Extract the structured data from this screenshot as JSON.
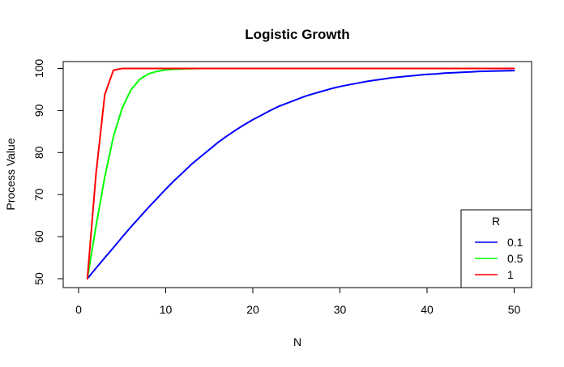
{
  "chart_data": {
    "type": "line",
    "title": "Logistic Growth",
    "xlabel": "N",
    "ylabel": "Process Value",
    "xlim": [
      0,
      50
    ],
    "ylim": [
      48,
      101
    ],
    "xticks": [
      0,
      10,
      20,
      30,
      40,
      50
    ],
    "yticks": [
      50,
      60,
      70,
      80,
      90,
      100
    ],
    "grid": false,
    "legend": {
      "title": "R",
      "position": "bottom-right"
    },
    "series": [
      {
        "name": "0.1",
        "color": "#0000ff",
        "x": [
          1,
          2,
          3,
          4,
          5,
          6,
          7,
          8,
          9,
          10,
          11,
          12,
          13,
          14,
          15,
          16,
          17,
          18,
          19,
          20,
          21,
          22,
          23,
          24,
          25,
          26,
          27,
          28,
          29,
          30,
          31,
          32,
          33,
          34,
          35,
          36,
          37,
          38,
          39,
          40,
          41,
          42,
          43,
          44,
          45,
          46,
          47,
          48,
          49,
          50
        ],
        "y": [
          50,
          52.5,
          55.0,
          57.4,
          59.9,
          62.3,
          64.6,
          66.9,
          69.1,
          71.3,
          73.4,
          75.3,
          77.3,
          79.0,
          80.7,
          82.4,
          83.9,
          85.3,
          86.6,
          87.8,
          88.9,
          90.0,
          91.0,
          91.8,
          92.6,
          93.4,
          94.0,
          94.6,
          95.2,
          95.7,
          96.1,
          96.5,
          96.9,
          97.2,
          97.5,
          97.8,
          98.0,
          98.2,
          98.4,
          98.6,
          98.7,
          98.9,
          99.0,
          99.1,
          99.2,
          99.3,
          99.35,
          99.4,
          99.45,
          99.5
        ]
      },
      {
        "name": "0.5",
        "color": "#00ff00",
        "x": [
          1,
          2,
          3,
          4,
          5,
          6,
          7,
          8,
          9,
          10,
          11,
          12,
          13,
          14
        ],
        "y": [
          50,
          62.5,
          74.2,
          83.8,
          90.6,
          94.9,
          97.4,
          98.7,
          99.3,
          99.7,
          99.8,
          99.9,
          99.95,
          100
        ]
      },
      {
        "name": "1",
        "color": "#ff0000",
        "x": [
          1,
          2,
          3,
          4,
          5,
          6,
          10,
          20,
          30,
          40,
          50
        ],
        "y": [
          50,
          75.0,
          93.8,
          99.6,
          100,
          100,
          100,
          100,
          100,
          100,
          100
        ]
      }
    ]
  }
}
